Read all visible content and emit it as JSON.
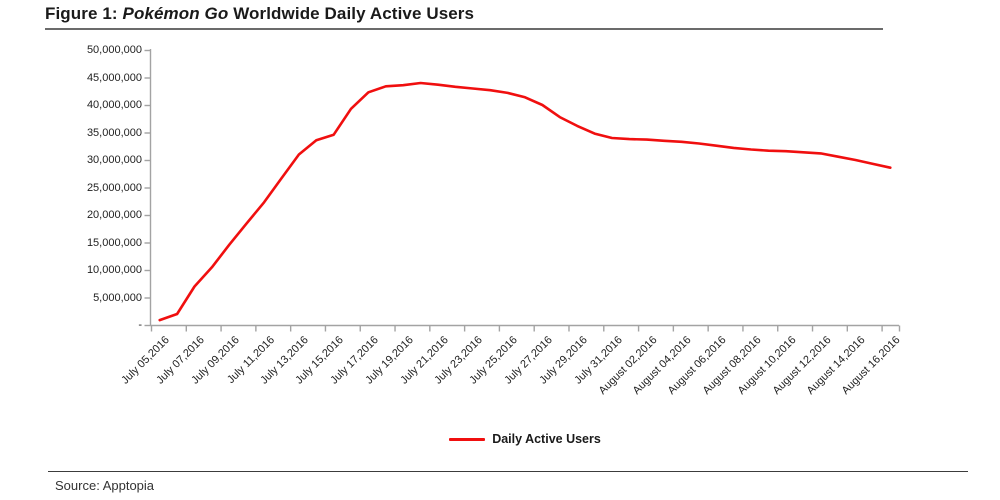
{
  "figure": {
    "title_prefix": "Figure 1: ",
    "title_italic": "Pokémon Go",
    "title_suffix": " Worldwide Daily Active Users",
    "source": "Source: Apptopia"
  },
  "colors": {
    "line_red": "#f00f0f",
    "axis_gray": "#a3a3a3",
    "title_underline": "#6b6b6b",
    "footer_rule": "#3c3c3c"
  },
  "chart_data": {
    "type": "line",
    "title": "Figure 1: Pokémon Go Worldwide Daily Active Users",
    "legend_position": "bottom",
    "grid": false,
    "ylim": [
      0,
      50000000
    ],
    "y_tick_labels": [
      "50,000,000",
      "45,000,000",
      "40,000,000",
      "35,000,000",
      "30,000,000",
      "25,000,000",
      "20,000,000",
      "15,000,000",
      "10,000,000",
      "5,000,000",
      "-"
    ],
    "x_tick_labels": [
      "July 05,2016",
      "July 07,2016",
      "July 09,2016",
      "July 11,2016",
      "July 13,2016",
      "July 15,2016",
      "July 17,2016",
      "July 19,2016",
      "July 21,2016",
      "July 23,2016",
      "July 25,2016",
      "July 27,2016",
      "July 29,2016",
      "July 31,2016",
      "August 02,2016",
      "August 04,2016",
      "August 06,2016",
      "August 08,2016",
      "August 10,2016",
      "August 12,2016",
      "August 14,2016",
      "August 16,2016"
    ],
    "series": [
      {
        "name": "Daily Active Users",
        "color": "#f00f0f",
        "x": [
          "July 05,2016",
          "July 06,2016",
          "July 07,2016",
          "July 08,2016",
          "July 09,2016",
          "July 10,2016",
          "July 11,2016",
          "July 12,2016",
          "July 13,2016",
          "July 14,2016",
          "July 15,2016",
          "July 16,2016",
          "July 17,2016",
          "July 18,2016",
          "July 19,2016",
          "July 20,2016",
          "July 21,2016",
          "July 22,2016",
          "July 23,2016",
          "July 24,2016",
          "July 25,2016",
          "July 26,2016",
          "July 27,2016",
          "July 28,2016",
          "July 29,2016",
          "July 30,2016",
          "July 31,2016",
          "August 01,2016",
          "August 02,2016",
          "August 03,2016",
          "August 04,2016",
          "August 05,2016",
          "August 06,2016",
          "August 07,2016",
          "August 08,2016",
          "August 09,2016",
          "August 10,2016",
          "August 11,2016",
          "August 12,2016",
          "August 13,2016",
          "August 14,2016",
          "August 15,2016",
          "August 16,2016"
        ],
        "values": [
          900000,
          2000000,
          7000000,
          10500000,
          14600000,
          18500000,
          22300000,
          26700000,
          31000000,
          33600000,
          34600000,
          39300000,
          42300000,
          43400000,
          43600000,
          44000000,
          43700000,
          43300000,
          43000000,
          42700000,
          42200000,
          41400000,
          40000000,
          37800000,
          36200000,
          34800000,
          34000000,
          33800000,
          33700000,
          33500000,
          33300000,
          33000000,
          32600000,
          32200000,
          31900000,
          31700000,
          31600000,
          31400000,
          31200000,
          30600000,
          30000000,
          29300000,
          28600000
        ]
      }
    ]
  }
}
